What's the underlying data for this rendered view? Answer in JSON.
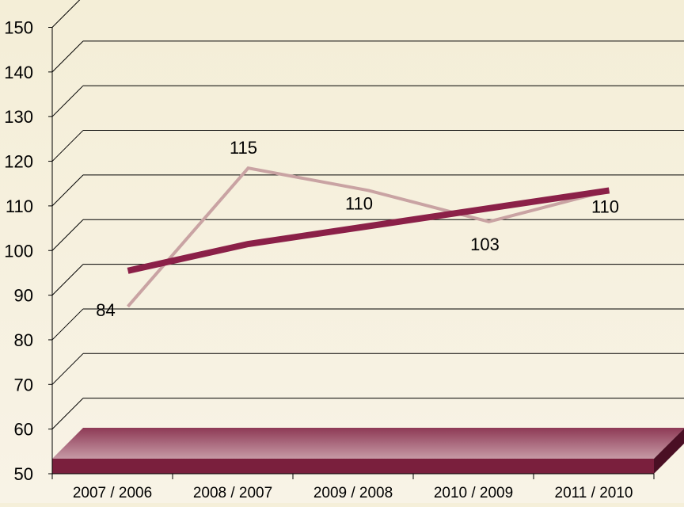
{
  "chart_data": {
    "type": "line",
    "style": "3d",
    "categories": [
      "2007 / 2006",
      "2008 / 2007",
      "2009 / 2008",
      "2010 / 2009",
      "2011 / 2010"
    ],
    "series": [
      {
        "values": [
          84,
          115,
          110,
          103,
          110
        ],
        "color": "#c9a3a3",
        "data_labels": [
          "84",
          "115",
          "110",
          "103",
          "110"
        ]
      },
      {
        "trendline": true,
        "values": [
          92,
          98,
          102,
          106,
          110
        ],
        "color": "#8b2048"
      }
    ],
    "y_ticks": [
      150,
      140,
      130,
      120,
      110,
      100,
      90,
      80,
      70,
      60,
      50
    ],
    "ylim": [
      50,
      150
    ],
    "grid": true,
    "floor_color": "#7a1f3d",
    "background_color": "#f5efd9"
  }
}
